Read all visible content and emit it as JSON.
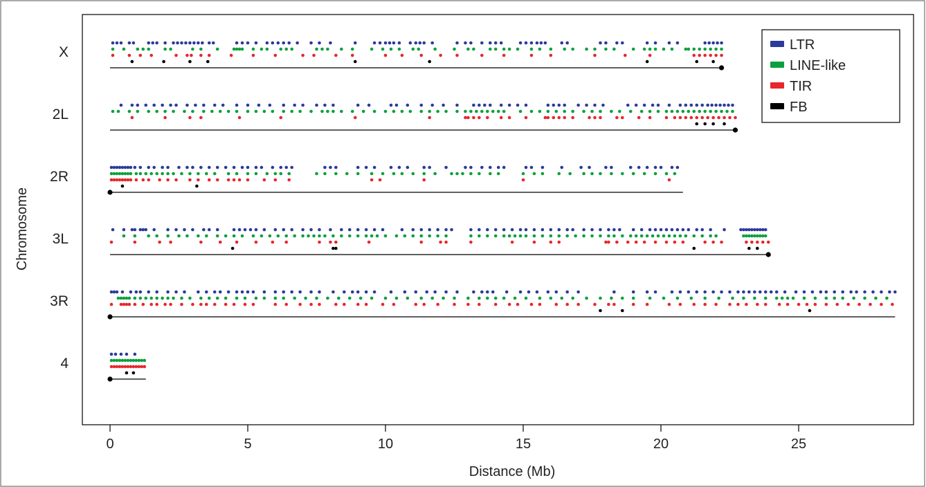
{
  "chart_data": {
    "type": "scatter",
    "title": "",
    "xlabel": "Distance (Mb)",
    "ylabel": "Chromosome",
    "xlim": [
      -0.4,
      29.2
    ],
    "xticks": [
      0,
      5,
      10,
      15,
      20,
      25
    ],
    "grid": false,
    "legend_position": "top-right",
    "chromosomes": [
      {
        "name": "X",
        "length": 22.2
      },
      {
        "name": "2L",
        "length": 22.7
      },
      {
        "name": "2R",
        "length": 20.8
      },
      {
        "name": "3L",
        "length": 23.9
      },
      {
        "name": "3R",
        "length": 28.5
      },
      {
        "name": "4",
        "length": 1.3
      }
    ],
    "series": [
      {
        "name": "LTR",
        "color": "#2b3a9b",
        "points": {
          "X": [
            0.1,
            0.25,
            0.4,
            0.7,
            0.85,
            1.4,
            1.55,
            1.7,
            2.0,
            2.3,
            2.45,
            2.6,
            2.75,
            2.9,
            3.05,
            3.2,
            3.35,
            3.6,
            3.75,
            4.6,
            4.8,
            5.0,
            5.3,
            5.7,
            5.9,
            6.1,
            6.3,
            6.5,
            6.8,
            7.3,
            7.6,
            8.0,
            8.9,
            9.6,
            9.8,
            10.0,
            10.15,
            10.3,
            10.5,
            10.9,
            11.1,
            11.25,
            11.4,
            11.7,
            12.6,
            12.9,
            13.1,
            13.5,
            13.8,
            14.0,
            14.2,
            14.9,
            15.1,
            15.3,
            15.5,
            15.65,
            15.8,
            16.4,
            16.6,
            17.8,
            18.0,
            18.4,
            18.6,
            19.5,
            19.8,
            20.3,
            20.6,
            21.6,
            21.75,
            21.9,
            22.05,
            22.2
          ],
          "2L": [
            0.4,
            0.8,
            1.0,
            1.3,
            1.6,
            1.9,
            2.2,
            2.4,
            2.8,
            3.1,
            3.4,
            3.8,
            4.1,
            4.6,
            5.0,
            5.4,
            5.8,
            6.3,
            6.7,
            7.0,
            7.5,
            7.8,
            8.1,
            9.0,
            9.4,
            10.2,
            10.4,
            10.8,
            11.3,
            11.7,
            12.1,
            12.6,
            13.2,
            13.4,
            13.6,
            13.8,
            14.2,
            14.5,
            14.8,
            15.1,
            15.9,
            16.1,
            16.3,
            16.5,
            17.0,
            17.3,
            17.6,
            17.9,
            18.8,
            19.1,
            19.4,
            19.7,
            19.9,
            20.3,
            20.7,
            20.9,
            21.1,
            21.3,
            21.5,
            21.7,
            21.85,
            22.0,
            22.15,
            22.3,
            22.45,
            22.6
          ],
          "2R": [
            0.05,
            0.15,
            0.25,
            0.35,
            0.45,
            0.55,
            0.65,
            0.75,
            0.9,
            1.1,
            1.4,
            1.6,
            1.9,
            2.1,
            2.5,
            2.8,
            3.0,
            3.3,
            3.6,
            3.9,
            4.2,
            4.5,
            4.8,
            5.0,
            5.3,
            5.5,
            5.9,
            6.2,
            6.4,
            6.6,
            7.8,
            8.0,
            8.2,
            9.0,
            9.3,
            9.6,
            10.2,
            10.5,
            10.8,
            11.4,
            11.6,
            12.2,
            12.9,
            13.1,
            13.5,
            13.8,
            14.1,
            14.3,
            15.1,
            15.3,
            15.7,
            16.4,
            17.1,
            17.4,
            18.0,
            18.2,
            18.9,
            19.2,
            19.5,
            19.8,
            20.0,
            20.4,
            20.6
          ],
          "3L": [
            0.1,
            0.5,
            0.8,
            0.9,
            1.1,
            1.2,
            1.3,
            1.6,
            2.1,
            2.4,
            2.7,
            3.0,
            3.4,
            3.6,
            3.9,
            4.5,
            4.7,
            4.9,
            5.1,
            5.3,
            5.6,
            6.0,
            6.3,
            6.6,
            7.0,
            7.3,
            7.6,
            8.0,
            8.4,
            8.7,
            9.0,
            9.3,
            9.6,
            9.9,
            10.6,
            11.0,
            11.3,
            11.6,
            11.9,
            12.2,
            12.4,
            13.1,
            13.4,
            13.7,
            14.0,
            14.3,
            14.6,
            14.9,
            15.1,
            15.4,
            15.7,
            16.0,
            16.3,
            16.6,
            16.8,
            17.2,
            17.5,
            17.8,
            18.1,
            18.3,
            18.5,
            19.0,
            19.3,
            19.6,
            19.8,
            20.0,
            20.2,
            20.4,
            20.6,
            20.8,
            21.0,
            21.3,
            21.5,
            21.8,
            22.3,
            22.9,
            23.0,
            23.1,
            23.2,
            23.3,
            23.4,
            23.5,
            23.6,
            23.7,
            23.8
          ],
          "3R": [
            0.05,
            0.15,
            0.25,
            0.45,
            0.75,
            0.95,
            1.1,
            1.4,
            1.7,
            2.1,
            2.4,
            2.7,
            3.2,
            3.5,
            3.8,
            4.0,
            4.3,
            4.6,
            4.8,
            5.0,
            5.2,
            5.6,
            6.0,
            6.3,
            6.6,
            6.9,
            7.3,
            7.6,
            8.1,
            8.5,
            8.8,
            9.0,
            9.3,
            9.6,
            10.2,
            10.7,
            11.1,
            11.5,
            11.8,
            12.2,
            12.6,
            13.2,
            13.5,
            13.7,
            13.9,
            14.4,
            14.9,
            15.2,
            15.5,
            15.9,
            16.2,
            16.6,
            17.0,
            18.3,
            19.0,
            19.5,
            19.8,
            20.4,
            20.7,
            21.0,
            21.3,
            21.6,
            21.9,
            22.2,
            22.5,
            22.8,
            23.0,
            23.2,
            23.4,
            23.6,
            23.8,
            24.0,
            24.2,
            24.5,
            24.9,
            25.2,
            25.5,
            25.8,
            26.0,
            26.3,
            26.6,
            26.9,
            27.1,
            27.4,
            27.7,
            28.0,
            28.3,
            28.5
          ],
          "4": [
            0.05,
            0.2,
            0.4,
            0.6,
            0.9
          ]
        }
      },
      {
        "name": "LINE-like",
        "color": "#0ba03c",
        "points": {
          "X": [
            0.1,
            0.5,
            1.0,
            1.2,
            1.4,
            2.0,
            2.2,
            3.0,
            3.3,
            3.9,
            4.5,
            4.6,
            4.7,
            4.8,
            5.2,
            5.5,
            5.7,
            6.2,
            6.4,
            6.6,
            7.5,
            7.7,
            7.9,
            8.4,
            8.8,
            9.5,
            9.9,
            10.2,
            10.5,
            11.0,
            11.2,
            11.8,
            12.5,
            13.0,
            13.2,
            13.8,
            14.0,
            14.3,
            14.5,
            14.8,
            15.3,
            15.6,
            16.0,
            16.5,
            16.8,
            17.3,
            17.6,
            18.0,
            18.3,
            19.0,
            19.4,
            19.6,
            19.8,
            20.1,
            20.4,
            20.9,
            21.0,
            21.2,
            21.4,
            21.6,
            21.8,
            22.0,
            22.2
          ],
          "2L": [
            0.1,
            0.3,
            0.7,
            1.0,
            1.4,
            1.7,
            2.0,
            2.3,
            2.7,
            3.0,
            3.4,
            3.7,
            4.0,
            4.3,
            4.6,
            5.0,
            5.3,
            5.6,
            5.9,
            6.3,
            6.6,
            6.9,
            7.3,
            7.7,
            7.9,
            8.1,
            8.4,
            8.8,
            9.2,
            9.6,
            10.0,
            10.3,
            10.6,
            10.9,
            11.3,
            11.6,
            11.9,
            12.2,
            12.6,
            12.9,
            13.1,
            13.3,
            13.5,
            13.7,
            13.9,
            14.1,
            14.3,
            14.9,
            15.3,
            15.6,
            15.9,
            16.2,
            16.5,
            16.8,
            17.2,
            17.5,
            17.8,
            18.2,
            18.5,
            18.9,
            19.3,
            19.6,
            19.9,
            20.2,
            20.4,
            20.6,
            20.8,
            21.0,
            21.2,
            21.4,
            21.6,
            21.8,
            22.0,
            22.2,
            22.4,
            22.6
          ],
          "2R": [
            0.05,
            0.15,
            0.25,
            0.35,
            0.45,
            0.55,
            0.65,
            0.75,
            0.95,
            1.1,
            1.3,
            1.5,
            1.7,
            1.9,
            2.1,
            2.3,
            2.6,
            2.9,
            3.2,
            3.5,
            3.8,
            4.3,
            4.6,
            5.0,
            5.3,
            5.7,
            6.0,
            6.2,
            6.5,
            7.5,
            7.8,
            8.2,
            8.6,
            9.0,
            9.5,
            9.9,
            10.3,
            10.6,
            11.0,
            11.4,
            11.8,
            12.4,
            12.6,
            12.8,
            13.1,
            13.4,
            13.8,
            14.1,
            15.0,
            15.4,
            15.7,
            16.3,
            16.7,
            17.2,
            17.5,
            17.8,
            18.2,
            18.6,
            19.0,
            19.4,
            19.8,
            20.2,
            20.5
          ],
          "3L": [
            0.5,
            0.9,
            1.4,
            1.7,
            2.1,
            2.5,
            2.8,
            3.2,
            3.5,
            3.9,
            4.2,
            4.5,
            4.8,
            5.2,
            5.5,
            5.8,
            6.1,
            6.4,
            6.7,
            7.0,
            7.2,
            7.4,
            7.6,
            7.8,
            8.1,
            8.4,
            8.7,
            9.0,
            9.3,
            9.5,
            9.7,
            10.0,
            10.4,
            10.7,
            11.0,
            11.3,
            11.6,
            11.9,
            12.2,
            13.1,
            13.4,
            13.7,
            14.0,
            14.3,
            14.5,
            14.7,
            14.9,
            15.1,
            15.4,
            15.7,
            16.0,
            16.3,
            16.6,
            16.9,
            17.2,
            17.5,
            17.8,
            18.1,
            18.3,
            18.6,
            18.9,
            19.1,
            19.3,
            19.5,
            19.7,
            19.9,
            20.1,
            20.3,
            20.5,
            20.7,
            20.9,
            21.2,
            21.5,
            21.8,
            22.0,
            23.0,
            23.1,
            23.2,
            23.3,
            23.4,
            23.5,
            23.6,
            23.7,
            23.8
          ],
          "3R": [
            0.3,
            0.4,
            0.5,
            0.6,
            0.7,
            0.9,
            1.1,
            1.3,
            1.5,
            1.7,
            1.9,
            2.1,
            2.3,
            2.6,
            2.9,
            3.3,
            3.6,
            3.9,
            4.2,
            4.6,
            4.9,
            5.3,
            5.6,
            6.0,
            6.3,
            6.7,
            7.1,
            7.5,
            7.9,
            8.3,
            8.7,
            9.1,
            9.5,
            10.0,
            10.4,
            10.8,
            11.3,
            11.7,
            12.1,
            12.5,
            13.0,
            13.4,
            13.7,
            14.0,
            14.3,
            14.7,
            15.1,
            15.6,
            16.0,
            16.4,
            16.8,
            17.3,
            17.8,
            18.2,
            18.6,
            19.0,
            19.6,
            20.1,
            20.6,
            21.1,
            21.6,
            22.1,
            22.6,
            23.0,
            23.4,
            23.8,
            24.2,
            24.4,
            24.6,
            24.8,
            25.2,
            25.6,
            26.0,
            26.3,
            26.6,
            27.0,
            27.4,
            27.8,
            28.2
          ],
          "4": [
            0.05,
            0.15,
            0.25,
            0.35,
            0.45,
            0.55,
            0.65,
            0.75,
            0.85,
            0.95,
            1.05,
            1.15,
            1.25
          ]
        }
      },
      {
        "name": "TIR",
        "color": "#e8262b",
        "points": {
          "X": [
            0.1,
            0.7,
            1.1,
            1.5,
            2.4,
            2.8,
            2.95,
            3.3,
            3.6,
            4.4,
            5.2,
            6.0,
            7.0,
            7.4,
            8.2,
            8.8,
            10.0,
            10.6,
            11.3,
            12.0,
            12.6,
            13.5,
            14.3,
            15.3,
            16.0,
            17.6,
            18.7,
            19.6,
            21.2,
            21.4,
            21.6,
            21.8,
            22.0,
            22.2
          ],
          "2L": [
            0.8,
            2.0,
            2.9,
            3.3,
            4.7,
            6.2,
            8.9,
            11.6,
            12.9,
            13.0,
            13.2,
            13.4,
            13.7,
            14.2,
            14.5,
            15.1,
            15.8,
            15.9,
            16.1,
            16.3,
            16.5,
            16.8,
            17.4,
            17.6,
            17.8,
            18.4,
            18.6,
            19.2,
            19.6,
            20.2,
            20.5,
            20.7,
            20.9,
            21.1,
            21.3,
            21.5,
            21.7,
            21.9,
            22.1,
            22.3,
            22.5,
            22.7
          ],
          "2R": [
            0.05,
            0.15,
            0.25,
            0.35,
            0.45,
            0.55,
            0.65,
            0.75,
            0.95,
            1.2,
            1.4,
            1.8,
            2.1,
            2.4,
            2.9,
            3.2,
            3.6,
            3.9,
            4.3,
            4.5,
            4.7,
            5.0,
            5.6,
            6.0,
            6.5,
            9.5,
            9.8,
            11.4,
            15.0,
            20.3
          ],
          "3L": [
            0.05,
            0.9,
            1.8,
            2.2,
            3.3,
            4.0,
            4.6,
            5.3,
            5.9,
            6.4,
            7.6,
            8.0,
            8.2,
            9.4,
            11.3,
            12.0,
            12.2,
            13.1,
            14.6,
            15.4,
            16.0,
            16.3,
            18.0,
            18.1,
            18.4,
            18.8,
            19.1,
            19.4,
            19.8,
            20.2,
            20.5,
            20.8,
            21.6,
            21.9,
            22.2,
            23.1,
            23.3,
            23.5,
            23.7,
            23.9
          ],
          "3R": [
            0.05,
            0.4,
            0.5,
            0.6,
            0.7,
            0.9,
            1.2,
            1.5,
            1.7,
            2.0,
            2.2,
            2.6,
            3.0,
            3.3,
            3.5,
            3.8,
            4.2,
            4.5,
            4.9,
            5.2,
            6.0,
            6.4,
            6.9,
            7.3,
            7.6,
            8.2,
            8.5,
            9.0,
            9.3,
            9.9,
            10.3,
            11.1,
            11.4,
            11.9,
            12.5,
            13.0,
            13.4,
            14.0,
            14.5,
            14.8,
            15.3,
            15.6,
            16.2,
            16.6,
            17.0,
            17.6,
            18.1,
            18.3,
            19.0,
            19.5,
            20.3,
            20.7,
            21.2,
            21.6,
            22.0,
            22.5,
            22.8,
            23.1,
            23.5,
            23.8,
            24.3,
            24.6,
            25.0,
            25.3,
            25.6,
            26.0,
            26.4,
            26.8,
            27.2,
            27.6,
            28.0,
            28.4
          ],
          "4": [
            0.05,
            0.15,
            0.25,
            0.35,
            0.45,
            0.55,
            0.65,
            0.75,
            0.85,
            0.95,
            1.05,
            1.15,
            1.25
          ]
        }
      },
      {
        "name": "FB",
        "color": "#000000",
        "points": {
          "X": [
            0.8,
            1.95,
            2.9,
            3.55,
            8.9,
            11.6,
            19.5,
            21.3,
            21.9
          ],
          "2L": [
            21.3,
            21.6,
            21.9,
            22.3
          ],
          "2R": [
            0.45,
            3.15
          ],
          "3L": [
            4.45,
            8.1,
            8.2,
            21.2,
            23.2,
            23.5
          ],
          "3R": [
            17.8,
            18.6,
            25.4
          ],
          "4": [
            0.6,
            0.85
          ]
        }
      }
    ]
  }
}
